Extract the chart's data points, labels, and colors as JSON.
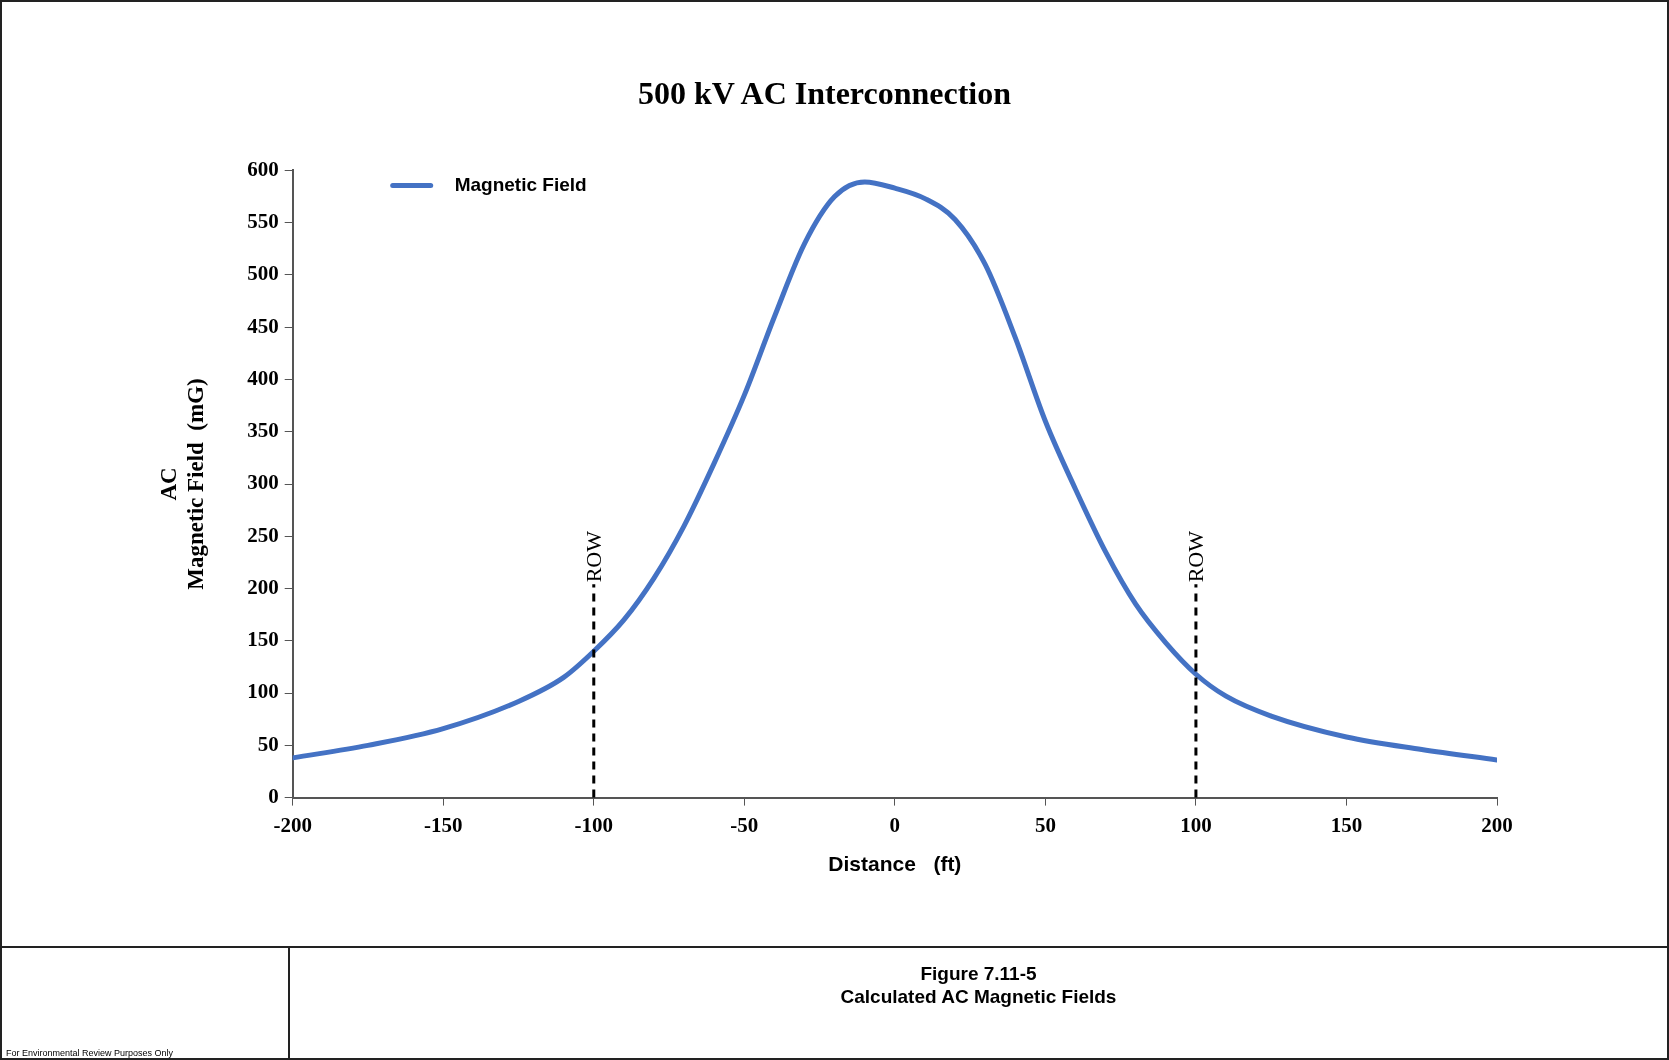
{
  "chart_data": {
    "type": "line",
    "title": "500 kV AC Interconnection",
    "xlabel": "Distance   (ft)",
    "ylabel": "AC\nMagnetic Field  (mG)",
    "x": [
      -200,
      -175,
      -150,
      -125,
      -110,
      -100,
      -90,
      -80,
      -70,
      -60,
      -50,
      -40,
      -30,
      -20,
      -10,
      0,
      10,
      20,
      30,
      40,
      50,
      60,
      70,
      80,
      90,
      100,
      110,
      125,
      150,
      175,
      200
    ],
    "series": [
      {
        "name": "Magnetic Field",
        "color": "#4472c4",
        "values": [
          38,
          50,
          66,
          92,
          115,
          140,
          170,
          210,
          260,
          320,
          385,
          460,
          530,
          575,
          589,
          583,
          573,
          553,
          510,
          440,
          360,
          295,
          235,
          185,
          148,
          118,
          97,
          78,
          58,
          46,
          36
        ]
      }
    ],
    "xlim": [
      -200,
      200
    ],
    "xticks": [
      -200,
      -150,
      -100,
      -50,
      0,
      50,
      100,
      150,
      200
    ],
    "ylim": [
      0,
      600
    ],
    "yticks": [
      0,
      50,
      100,
      150,
      200,
      250,
      300,
      350,
      400,
      450,
      500,
      550,
      600
    ],
    "grid": false,
    "legend": "top left",
    "marker": "none",
    "line_style": "solid",
    "ref_lines": [
      {
        "axis": "x",
        "value": -100,
        "label": "ROW",
        "color": "#000000",
        "line_style": "dashed"
      },
      {
        "axis": "x",
        "value": 100,
        "label": "ROW",
        "color": "#000000",
        "line_style": "dashed"
      }
    ],
    "annotations": [
      "Figure 7.11-5",
      "Calculated AC Magnetic Fields",
      "For Environmental Review Purposes Only"
    ]
  }
}
